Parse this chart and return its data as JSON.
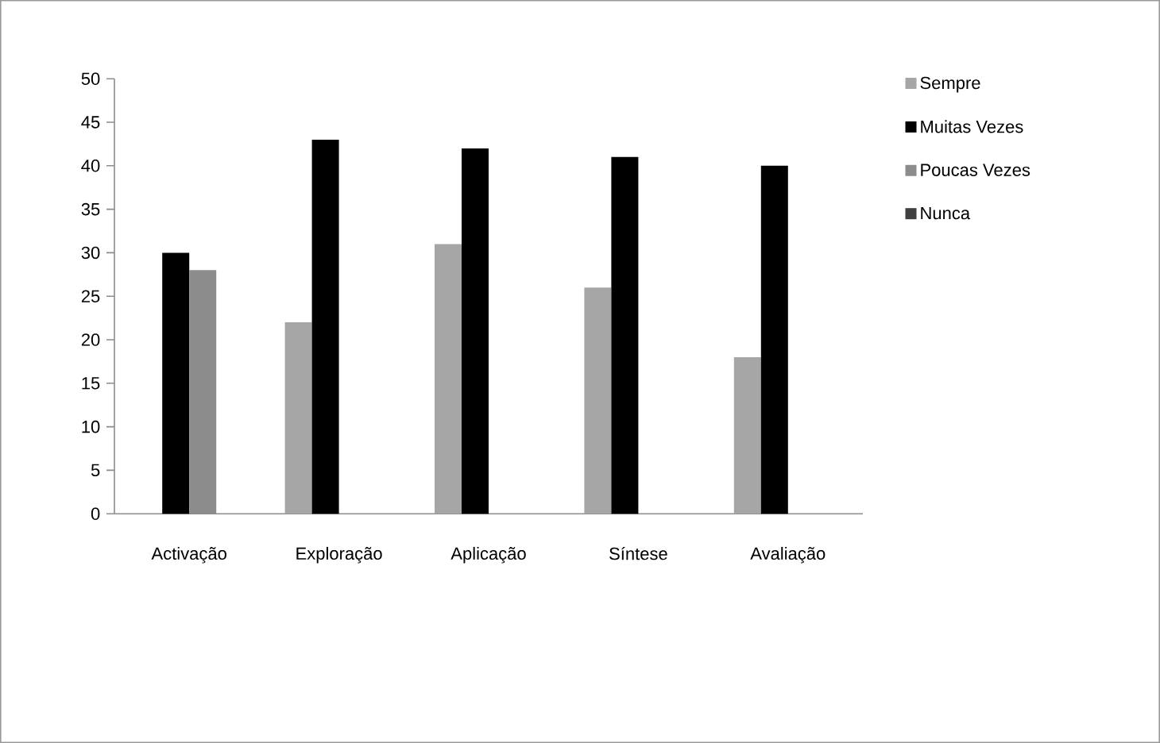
{
  "chart_data": {
    "type": "bar",
    "categories": [
      "Activação",
      "Exploração",
      "Aplicação",
      "Síntese",
      "Avaliação"
    ],
    "series": [
      {
        "name": "Sempre",
        "color": "#a6a6a6",
        "values": [
          0,
          22,
          31,
          26,
          18
        ]
      },
      {
        "name": "Muitas Vezes",
        "color": "#000000",
        "values": [
          30,
          43,
          42,
          41,
          40
        ]
      },
      {
        "name": "Poucas Vezes",
        "color": "#8c8c8c",
        "values": [
          28,
          0,
          0,
          0,
          0
        ]
      },
      {
        "name": "Nunca",
        "color": "#404040",
        "values": [
          0,
          0,
          0,
          0,
          0
        ]
      }
    ],
    "ylim": [
      0,
      50
    ],
    "yticks": [
      0,
      5,
      10,
      15,
      20,
      25,
      30,
      35,
      40,
      45,
      50
    ],
    "grid": false,
    "legend": "right"
  }
}
